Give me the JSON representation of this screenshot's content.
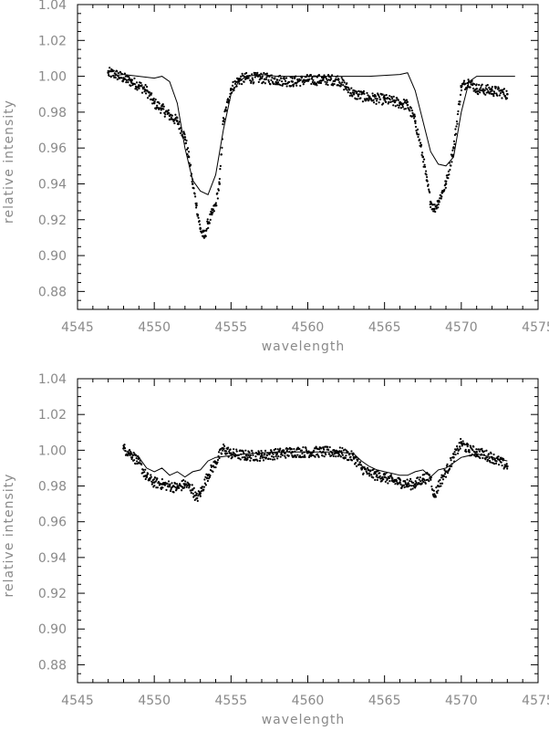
{
  "chart_data": [
    {
      "type": "scatter",
      "xlabel": "wavelength",
      "ylabel": "relative intensity",
      "xlim": [
        4545,
        4575
      ],
      "ylim": [
        0.87,
        1.04
      ],
      "xticks": [
        "4545",
        "4550",
        "4555",
        "4560",
        "4565",
        "4570",
        "4575"
      ],
      "yticks": [
        "0.88",
        "0.90",
        "0.92",
        "0.94",
        "0.96",
        "0.98",
        "1.00",
        "1.02",
        "1.04"
      ],
      "grid": false,
      "series": [
        {
          "kind": "line",
          "values_x": [
            4547.0,
            4548.0,
            4549.0,
            4550.0,
            4550.5,
            4551.0,
            4551.5,
            4552.0,
            4552.5,
            4553.0,
            4553.5,
            4554.0,
            4554.5,
            4555.0,
            4555.5,
            4556.0,
            4557.0,
            4558.0,
            4560.0,
            4562.0,
            4564.0,
            4566.0,
            4566.5,
            4567.0,
            4567.5,
            4568.0,
            4568.5,
            4569.0,
            4569.5,
            4570.0,
            4570.5,
            4571.0,
            4572.0,
            4573.0,
            4573.5
          ],
          "values_y": [
            1.0,
            1.001,
            1.0,
            0.999,
            1.0,
            0.997,
            0.985,
            0.96,
            0.942,
            0.936,
            0.934,
            0.945,
            0.97,
            0.99,
            0.997,
            1.0,
            1.001,
            1.0,
            1.0,
            1.0,
            1.0,
            1.001,
            1.002,
            0.992,
            0.975,
            0.958,
            0.951,
            0.95,
            0.955,
            0.98,
            0.997,
            1.0,
            1.0,
            1.0,
            1.0
          ]
        },
        {
          "kind": "points",
          "values_x": [
            4547.0,
            4547.5,
            4548.0,
            4548.5,
            4549.0,
            4549.5,
            4550.0,
            4550.5,
            4551.0,
            4551.5,
            4552.0,
            4552.25,
            4552.5,
            4552.75,
            4553.0,
            4553.25,
            4553.5,
            4553.75,
            4554.0,
            4554.25,
            4554.5,
            4555.0,
            4555.5,
            4556.0,
            4557.0,
            4558.0,
            4559.0,
            4560.0,
            4561.0,
            4562.0,
            4562.5,
            4563.0,
            4564.0,
            4565.0,
            4566.0,
            4566.5,
            4567.0,
            4567.5,
            4567.75,
            4568.0,
            4568.25,
            4568.5,
            4568.75,
            4569.0,
            4569.5,
            4570.0,
            4570.5,
            4571.0,
            4572.0,
            4573.0
          ],
          "values_y": [
            1.002,
            1.001,
            0.999,
            0.997,
            0.995,
            0.992,
            0.985,
            0.982,
            0.978,
            0.975,
            0.966,
            0.955,
            0.94,
            0.928,
            0.915,
            0.91,
            0.918,
            0.923,
            0.928,
            0.94,
            0.975,
            0.993,
            0.998,
            0.999,
            0.999,
            0.998,
            0.997,
            0.998,
            0.998,
            0.998,
            0.994,
            0.99,
            0.988,
            0.987,
            0.985,
            0.984,
            0.975,
            0.955,
            0.942,
            0.93,
            0.926,
            0.93,
            0.935,
            0.94,
            0.96,
            0.994,
            0.997,
            0.993,
            0.992,
            0.99
          ]
        }
      ]
    },
    {
      "type": "scatter",
      "xlabel": "wavelength",
      "ylabel": "relative intensity",
      "xlim": [
        4545,
        4575
      ],
      "ylim": [
        0.87,
        1.04
      ],
      "xticks": [
        "4545",
        "4550",
        "4555",
        "4560",
        "4565",
        "4570",
        "4575"
      ],
      "yticks": [
        "0.88",
        "0.90",
        "0.92",
        "0.94",
        "0.96",
        "0.98",
        "1.00",
        "1.02",
        "1.04"
      ],
      "grid": false,
      "series": [
        {
          "kind": "line",
          "values_x": [
            4548.0,
            4549.0,
            4549.5,
            4550.0,
            4550.5,
            4551.0,
            4551.5,
            4552.0,
            4552.5,
            4553.0,
            4553.5,
            4554.0,
            4555.0,
            4556.0,
            4558.0,
            4560.0,
            4562.0,
            4563.0,
            4563.5,
            4564.0,
            4564.5,
            4565.0,
            4565.5,
            4566.0,
            4566.5,
            4567.0,
            4567.5,
            4568.0,
            4568.5,
            4569.0,
            4569.5,
            4570.0,
            4571.0,
            4572.0,
            4573.0
          ],
          "values_y": [
            1.0,
            0.996,
            0.99,
            0.988,
            0.99,
            0.986,
            0.988,
            0.985,
            0.988,
            0.989,
            0.994,
            0.996,
            0.997,
            0.998,
            0.999,
            0.999,
            0.999,
            0.998,
            0.994,
            0.991,
            0.989,
            0.988,
            0.987,
            0.986,
            0.986,
            0.988,
            0.989,
            0.985,
            0.989,
            0.99,
            0.993,
            0.996,
            0.998,
            0.996,
            0.994
          ]
        },
        {
          "kind": "points",
          "values_x": [
            4548.0,
            4548.5,
            4549.0,
            4549.5,
            4550.0,
            4550.5,
            4551.0,
            4551.5,
            4552.0,
            4552.5,
            4552.75,
            4553.0,
            4553.5,
            4554.0,
            4554.5,
            4555.0,
            4556.0,
            4557.0,
            4558.0,
            4559.0,
            4560.0,
            4561.0,
            4562.0,
            4563.0,
            4563.5,
            4564.0,
            4564.5,
            4565.0,
            4565.5,
            4566.0,
            4566.5,
            4567.0,
            4567.5,
            4568.0,
            4568.25,
            4568.5,
            4569.0,
            4569.5,
            4570.0,
            4570.5,
            4571.0,
            4572.0,
            4573.0
          ],
          "values_y": [
            1.001,
            0.998,
            0.993,
            0.985,
            0.982,
            0.981,
            0.98,
            0.979,
            0.981,
            0.978,
            0.973,
            0.976,
            0.986,
            0.993,
            1.001,
            0.998,
            0.997,
            0.997,
            0.998,
            0.999,
            0.999,
            0.999,
            0.999,
            0.996,
            0.99,
            0.987,
            0.986,
            0.985,
            0.983,
            0.982,
            0.981,
            0.981,
            0.984,
            0.985,
            0.974,
            0.98,
            0.988,
            0.996,
            1.004,
            1.0,
            0.999,
            0.996,
            0.991
          ]
        }
      ]
    }
  ]
}
